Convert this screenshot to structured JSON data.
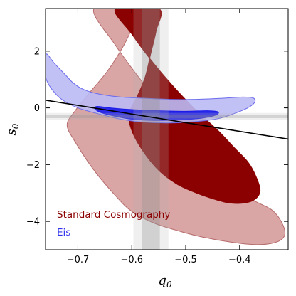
{
  "chart_data": {
    "type": "contour",
    "xlabel": "q",
    "xlabel_sub": "0",
    "ylabel": "s",
    "ylabel_sub": "0",
    "xlim": [
      -0.76,
      -0.31
    ],
    "ylim": [
      -5.0,
      3.5
    ],
    "xticks": [
      {
        "value": -0.7,
        "label": "−0.7"
      },
      {
        "value": -0.6,
        "label": "−0.6"
      },
      {
        "value": -0.5,
        "label": "−0.5"
      },
      {
        "value": -0.4,
        "label": "−0.4"
      }
    ],
    "yticks": [
      {
        "value": 2,
        "label": "2"
      },
      {
        "value": 0,
        "label": "0"
      },
      {
        "value": -2,
        "label": "−2"
      },
      {
        "value": -4,
        "label": "−4"
      }
    ],
    "grid": false,
    "legend_position": "bottom-left",
    "series": [
      {
        "name": "Standard Cosmography",
        "color": "#8b0000",
        "regions": [
          {
            "level": "outer",
            "fill": "#d9a5a5",
            "stroke": "#b56a6a",
            "points": [
              [
                -0.67,
                3.5
              ],
              [
                -0.63,
                2.2
              ],
              [
                -0.58,
                0.9
              ],
              [
                -0.53,
                -0.3
              ],
              [
                -0.48,
                -1.4
              ],
              [
                -0.44,
                -2.3
              ],
              [
                -0.4,
                -3.0
              ],
              [
                -0.365,
                -3.35
              ],
              [
                -0.34,
                -3.6
              ],
              [
                -0.323,
                -4.0
              ],
              [
                -0.316,
                -4.45
              ],
              [
                -0.33,
                -4.72
              ],
              [
                -0.365,
                -4.82
              ],
              [
                -0.41,
                -4.75
              ],
              [
                -0.47,
                -4.55
              ],
              [
                -0.52,
                -4.3
              ],
              [
                -0.56,
                -4.05
              ],
              [
                -0.6,
                -3.65
              ],
              [
                -0.63,
                -3.1
              ],
              [
                -0.67,
                -2.2
              ],
              [
                -0.705,
                -1.2
              ],
              [
                -0.72,
                -0.6
              ],
              [
                -0.705,
                -0.1
              ],
              [
                -0.68,
                0.5
              ],
              [
                -0.645,
                1.3
              ],
              [
                -0.615,
                2.2
              ],
              [
                -0.595,
                3.0
              ],
              [
                -0.585,
                3.5
              ]
            ]
          },
          {
            "level": "inner",
            "fill": "#8b0000",
            "stroke": "#8b0000",
            "points": [
              [
                -0.63,
                3.5
              ],
              [
                -0.6,
                2.6
              ],
              [
                -0.565,
                1.7
              ],
              [
                -0.525,
                0.8
              ],
              [
                -0.48,
                -0.1
              ],
              [
                -0.44,
                -0.8
              ],
              [
                -0.41,
                -1.4
              ],
              [
                -0.385,
                -1.9
              ],
              [
                -0.37,
                -2.4
              ],
              [
                -0.362,
                -2.9
              ],
              [
                -0.37,
                -3.2
              ],
              [
                -0.39,
                -3.35
              ],
              [
                -0.42,
                -3.35
              ],
              [
                -0.45,
                -3.2
              ],
              [
                -0.48,
                -3.0
              ],
              [
                -0.515,
                -2.7
              ],
              [
                -0.55,
                -2.2
              ],
              [
                -0.58,
                -1.5
              ],
              [
                -0.6,
                -0.8
              ],
              [
                -0.605,
                -0.2
              ],
              [
                -0.59,
                0.4
              ],
              [
                -0.575,
                1.1
              ],
              [
                -0.565,
                1.9
              ],
              [
                -0.555,
                2.7
              ],
              [
                -0.55,
                3.5
              ]
            ]
          }
        ]
      },
      {
        "name": "Eis",
        "color": "#3333ee",
        "regions": [
          {
            "level": "outer",
            "fill": "#babaf5",
            "stroke": "#6b6bee",
            "points": [
              [
                -0.758,
                1.9
              ],
              [
                -0.745,
                1.6
              ],
              [
                -0.73,
                1.3
              ],
              [
                -0.72,
                1.1
              ],
              [
                -0.71,
                0.9
              ],
              [
                -0.695,
                0.7
              ],
              [
                -0.675,
                0.55
              ],
              [
                -0.65,
                0.45
              ],
              [
                -0.62,
                0.38
              ],
              [
                -0.58,
                0.34
              ],
              [
                -0.53,
                0.3
              ],
              [
                -0.48,
                0.3
              ],
              [
                -0.43,
                0.34
              ],
              [
                -0.395,
                0.38
              ],
              [
                -0.375,
                0.35
              ],
              [
                -0.372,
                0.2
              ],
              [
                -0.385,
                0.0
              ],
              [
                -0.41,
                -0.2
              ],
              [
                -0.44,
                -0.38
              ],
              [
                -0.48,
                -0.48
              ],
              [
                -0.53,
                -0.53
              ],
              [
                -0.58,
                -0.5
              ],
              [
                -0.62,
                -0.4
              ],
              [
                -0.66,
                -0.22
              ],
              [
                -0.7,
                0.0
              ],
              [
                -0.73,
                0.3
              ],
              [
                -0.75,
                0.7
              ],
              [
                -0.76,
                1.1
              ],
              [
                -0.76,
                1.6
              ]
            ]
          },
          {
            "level": "inner",
            "fill": "#1a1ae8",
            "stroke": "#1a1ae8",
            "points": [
              [
                -0.665,
                0.05
              ],
              [
                -0.64,
                0.0
              ],
              [
                -0.6,
                -0.06
              ],
              [
                -0.55,
                -0.1
              ],
              [
                -0.5,
                -0.12
              ],
              [
                -0.46,
                -0.1
              ],
              [
                -0.44,
                -0.14
              ],
              [
                -0.445,
                -0.26
              ],
              [
                -0.47,
                -0.36
              ],
              [
                -0.51,
                -0.42
              ],
              [
                -0.56,
                -0.44
              ],
              [
                -0.6,
                -0.4
              ],
              [
                -0.63,
                -0.3
              ],
              [
                -0.655,
                -0.18
              ],
              [
                -0.668,
                -0.05
              ]
            ]
          }
        ]
      }
    ],
    "reference_line": {
      "color": "#000000",
      "points": [
        [
          -0.76,
          0.27
        ],
        [
          -0.31,
          -1.1
        ]
      ]
    },
    "bands": {
      "vertical": [
        {
          "range": [
            -0.597,
            -0.532
          ],
          "fill": "#b4b4b4",
          "opacity": 0.22
        },
        {
          "range": [
            -0.581,
            -0.548
          ],
          "fill": "#8c8c8c",
          "opacity": 0.3
        }
      ],
      "horizontal": [
        {
          "range": [
            -0.42,
            -0.18
          ],
          "fill": "#b4b4b4",
          "opacity": 0.22
        },
        {
          "range": [
            -0.36,
            -0.24
          ],
          "fill": "#8c8c8c",
          "opacity": 0.28
        }
      ]
    }
  }
}
